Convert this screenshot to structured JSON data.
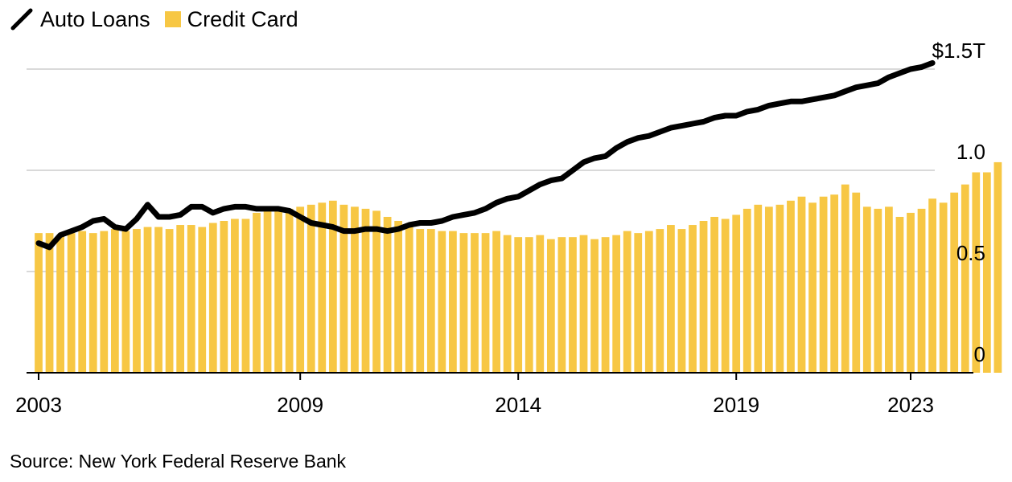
{
  "legend": {
    "line_label": "Auto Loans",
    "bar_label": "Credit Card"
  },
  "source": "Source: New York Federal Reserve Bank",
  "colors": {
    "bar": "#F7C744",
    "line": "#000000",
    "grid": "#D9D9D9",
    "axis": "#000000"
  },
  "chart_data": {
    "type": "bar+line",
    "title": "",
    "xlabel": "",
    "ylabel": "",
    "x_unit": "year (quarterly observations)",
    "ylim": [
      0,
      1.5
    ],
    "y_ticks": [
      {
        "value": 0,
        "label": "0"
      },
      {
        "value": 0.5,
        "label": "0.5"
      },
      {
        "value": 1.0,
        "label": "1.0"
      },
      {
        "value": 1.5,
        "label": "$1.5T"
      }
    ],
    "x_ticks": [
      {
        "value": 2003.0,
        "label": "2003"
      },
      {
        "value": 2009.0,
        "label": "2009"
      },
      {
        "value": 2014.0,
        "label": "2014"
      },
      {
        "value": 2019.0,
        "label": "2019"
      },
      {
        "value": 2023.0,
        "label": "2023"
      }
    ],
    "xlim": [
      2003.0,
      2023.0
    ],
    "grid": "horizontal",
    "legend_position": "top-left",
    "series": [
      {
        "name": "Credit Card",
        "type": "bar",
        "start": 2003.0,
        "step": 0.25,
        "values": [
          0.69,
          0.69,
          0.68,
          0.69,
          0.7,
          0.69,
          0.7,
          0.71,
          0.7,
          0.71,
          0.72,
          0.72,
          0.71,
          0.73,
          0.73,
          0.72,
          0.74,
          0.75,
          0.76,
          0.76,
          0.79,
          0.8,
          0.81,
          0.81,
          0.82,
          0.83,
          0.84,
          0.85,
          0.83,
          0.82,
          0.81,
          0.8,
          0.77,
          0.75,
          0.73,
          0.71,
          0.71,
          0.7,
          0.7,
          0.69,
          0.69,
          0.69,
          0.7,
          0.68,
          0.67,
          0.67,
          0.68,
          0.66,
          0.67,
          0.67,
          0.68,
          0.66,
          0.67,
          0.68,
          0.7,
          0.69,
          0.7,
          0.71,
          0.73,
          0.71,
          0.73,
          0.75,
          0.77,
          0.76,
          0.78,
          0.81,
          0.83,
          0.82,
          0.83,
          0.85,
          0.87,
          0.84,
          0.87,
          0.88,
          0.93,
          0.89,
          0.82,
          0.81,
          0.82,
          0.77,
          0.79,
          0.81,
          0.86,
          0.84,
          0.89,
          0.93,
          0.99,
          0.99,
          1.04
        ]
      },
      {
        "name": "Auto Loans",
        "type": "line",
        "start": 2003.0,
        "step": 0.25,
        "values": [
          0.64,
          0.62,
          0.68,
          0.7,
          0.72,
          0.75,
          0.76,
          0.72,
          0.71,
          0.76,
          0.83,
          0.77,
          0.77,
          0.78,
          0.82,
          0.82,
          0.79,
          0.81,
          0.82,
          0.82,
          0.81,
          0.81,
          0.81,
          0.8,
          0.77,
          0.74,
          0.73,
          0.72,
          0.7,
          0.7,
          0.71,
          0.71,
          0.7,
          0.71,
          0.73,
          0.74,
          0.74,
          0.75,
          0.77,
          0.78,
          0.79,
          0.81,
          0.84,
          0.86,
          0.87,
          0.9,
          0.93,
          0.95,
          0.96,
          1.0,
          1.04,
          1.06,
          1.07,
          1.11,
          1.14,
          1.16,
          1.17,
          1.19,
          1.21,
          1.22,
          1.23,
          1.24,
          1.26,
          1.27,
          1.27,
          1.29,
          1.3,
          1.32,
          1.33,
          1.34,
          1.34,
          1.35,
          1.36,
          1.37,
          1.39,
          1.41,
          1.42,
          1.43,
          1.46,
          1.48,
          1.5,
          1.51,
          1.53
        ]
      }
    ]
  }
}
